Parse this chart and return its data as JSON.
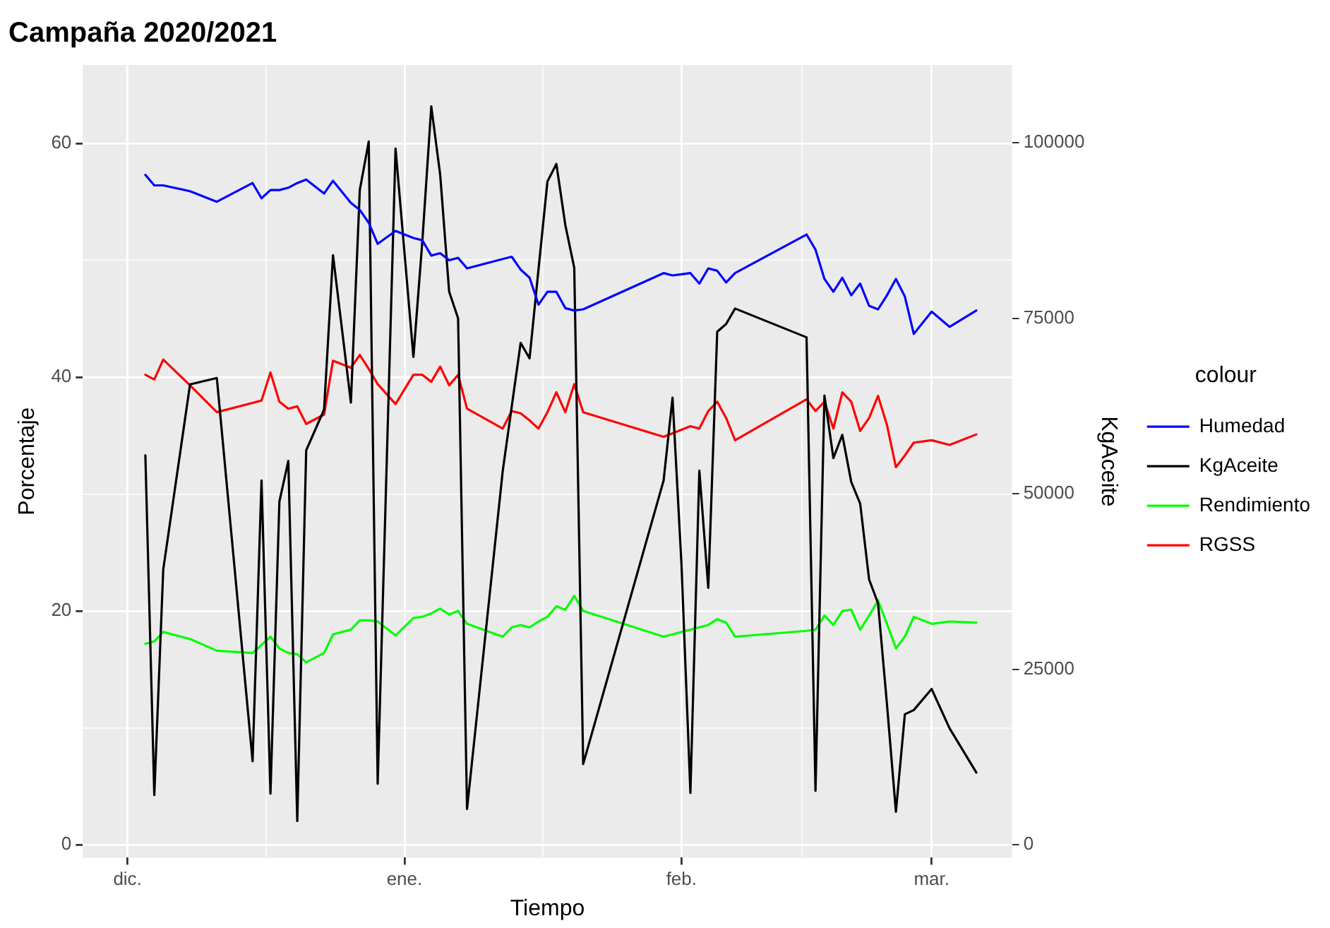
{
  "chart_data": {
    "type": "line",
    "title": "Campaña 2020/2021",
    "xlabel": "Tiempo",
    "ylabel": "Porcentaje",
    "y2label": "KgAceite",
    "legend_title": "colour",
    "x": [
      "2020-12-03",
      "2020-12-04",
      "2020-12-05",
      "2020-12-08",
      "2020-12-11",
      "2020-12-15",
      "2020-12-16",
      "2020-12-17",
      "2020-12-18",
      "2020-12-19",
      "2020-12-20",
      "2020-12-21",
      "2020-12-23",
      "2020-12-24",
      "2020-12-26",
      "2020-12-27",
      "2020-12-28",
      "2020-12-29",
      "2020-12-31",
      "2021-01-02",
      "2021-01-03",
      "2021-01-04",
      "2021-01-05",
      "2021-01-06",
      "2021-01-07",
      "2021-01-08",
      "2021-01-12",
      "2021-01-13",
      "2021-01-14",
      "2021-01-15",
      "2021-01-16",
      "2021-01-17",
      "2021-01-18",
      "2021-01-19",
      "2021-01-20",
      "2021-01-21",
      "2021-01-30",
      "2021-01-31",
      "2021-02-01",
      "2021-02-02",
      "2021-02-03",
      "2021-02-04",
      "2021-02-05",
      "2021-02-06",
      "2021-02-07",
      "2021-02-15",
      "2021-02-16",
      "2021-02-17",
      "2021-02-18",
      "2021-02-19",
      "2021-02-20",
      "2021-02-21",
      "2021-02-22",
      "2021-02-23",
      "2021-02-24",
      "2021-02-25",
      "2021-02-26",
      "2021-02-27",
      "2021-03-01",
      "2021-03-03",
      "2021-03-06"
    ],
    "series": [
      {
        "name": "Humedad",
        "color": "#0000ff",
        "values": [
          57.3,
          56.4,
          56.4,
          55.9,
          55.0,
          56.6,
          55.3,
          56.0,
          56.0,
          56.2,
          56.6,
          56.9,
          55.7,
          56.8,
          54.9,
          54.3,
          53.2,
          51.4,
          52.5,
          51.9,
          51.7,
          50.4,
          50.6,
          50.0,
          50.2,
          49.3,
          50.1,
          50.3,
          49.2,
          48.5,
          46.2,
          47.3,
          47.3,
          45.9,
          45.7,
          45.8,
          48.9,
          48.7,
          48.8,
          48.9,
          48.0,
          49.3,
          49.1,
          48.1,
          48.9,
          52.2,
          50.9,
          48.4,
          47.3,
          48.5,
          47.0,
          48.0,
          46.1,
          45.8,
          47.0,
          48.4,
          46.9,
          43.7,
          45.6,
          44.3,
          45.7
        ]
      },
      {
        "name": "KgAceite",
        "color": "#000000",
        "axis": "y2",
        "values": [
          55500,
          7100,
          39200,
          65600,
          66500,
          11900,
          51900,
          7300,
          48900,
          54700,
          3400,
          56200,
          62000,
          84000,
          63000,
          93300,
          100200,
          8700,
          99200,
          69500,
          86000,
          105200,
          95400,
          78800,
          75000,
          5100,
          53300,
          62400,
          71500,
          69300,
          82000,
          94500,
          97000,
          88300,
          82200,
          11500,
          51900,
          63700,
          40000,
          7400,
          53300,
          36600,
          73100,
          74200,
          76400,
          72300,
          7700,
          64000,
          55100,
          58400,
          51700,
          48600,
          37800,
          34400,
          20000,
          4700,
          18600,
          19200,
          22200,
          16600,
          10300
        ]
      },
      {
        "name": "Rendimiento",
        "color": "#00ff00",
        "values": [
          17.2,
          17.4,
          18.2,
          17.6,
          16.6,
          16.4,
          17.1,
          17.8,
          16.8,
          16.4,
          16.3,
          15.6,
          16.4,
          18.0,
          18.4,
          19.2,
          19.2,
          19.1,
          17.9,
          19.4,
          19.5,
          19.8,
          20.2,
          19.7,
          20.0,
          18.9,
          17.8,
          18.6,
          18.8,
          18.6,
          19.1,
          19.5,
          20.4,
          20.1,
          21.3,
          20.0,
          17.8,
          18.0,
          18.2,
          18.4,
          18.6,
          18.8,
          19.3,
          19.0,
          17.8,
          18.3,
          18.4,
          19.6,
          18.8,
          20.0,
          20.1,
          18.4,
          19.6,
          20.9,
          18.9,
          16.8,
          17.8,
          19.5,
          18.9,
          19.1,
          19.0
        ]
      },
      {
        "name": "RGSS",
        "color": "#ff0000",
        "values": [
          40.2,
          39.8,
          41.5,
          39.3,
          37.0,
          37.8,
          38.0,
          40.4,
          37.9,
          37.3,
          37.5,
          36.0,
          36.8,
          41.4,
          40.8,
          41.9,
          40.7,
          39.4,
          37.7,
          40.2,
          40.2,
          39.6,
          40.9,
          39.3,
          40.2,
          37.3,
          35.6,
          37.1,
          36.9,
          36.3,
          35.6,
          37.0,
          38.7,
          37.0,
          39.4,
          37.0,
          34.9,
          35.2,
          35.5,
          35.8,
          35.6,
          37.1,
          37.9,
          36.5,
          34.6,
          38.1,
          37.1,
          37.9,
          35.6,
          38.7,
          37.9,
          35.4,
          36.5,
          38.4,
          35.9,
          32.3,
          33.3,
          34.4,
          34.6,
          34.2,
          35.1
        ]
      }
    ],
    "xlim": [
      "2020-11-26",
      "2021-03-10"
    ],
    "xticks": [
      {
        "value": "2020-12-01",
        "label": "dic."
      },
      {
        "value": "2020-12-16T12:00",
        "label": null
      },
      {
        "value": "2021-01-01",
        "label": "ene."
      },
      {
        "value": "2021-01-16T12:00",
        "label": null
      },
      {
        "value": "2021-02-01",
        "label": "feb."
      },
      {
        "value": "2021-02-14T12:00",
        "label": null
      },
      {
        "value": "2021-03-01",
        "label": "mar."
      }
    ],
    "ylim": [
      -1.1,
      66.7
    ],
    "yticks": [
      0,
      {
        "value": 10,
        "label": null
      },
      20,
      {
        "value": 30,
        "label": null
      },
      40,
      {
        "value": 50,
        "label": null
      },
      60
    ],
    "y2lim": [
      -1833,
      111100
    ],
    "y2ticks": [
      0,
      25000,
      50000,
      75000,
      100000
    ],
    "grid": true,
    "legend": "right"
  }
}
